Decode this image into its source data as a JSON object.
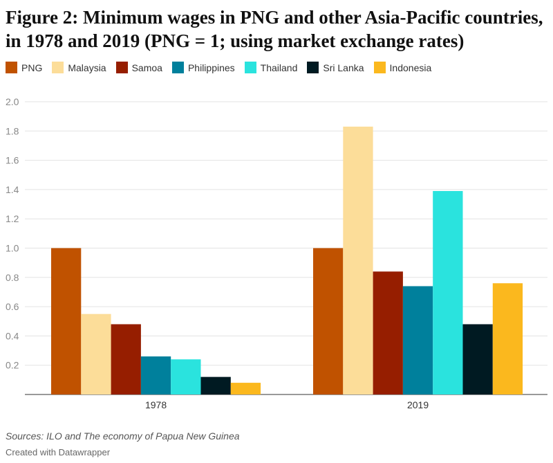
{
  "title": "Figure 2: Minimum wages in PNG and other Asia-Pacific countries, in 1978 and 2019 (PNG = 1; using market exchange rates)",
  "source": "Sources: ILO and The economy of Papua New Guinea",
  "credit": "Created with Datawrapper",
  "chart_data": {
    "type": "bar",
    "title": "Figure 2: Minimum wages in PNG and other Asia-Pacific countries, in 1978 and 2019 (PNG = 1; using market exchange rates)",
    "categories": [
      "1978",
      "2019"
    ],
    "series": [
      {
        "name": "PNG",
        "color": "#c05200",
        "values": [
          1.0,
          1.0
        ]
      },
      {
        "name": "Malaysia",
        "color": "#fcdd99",
        "values": [
          0.55,
          1.83
        ]
      },
      {
        "name": "Samoa",
        "color": "#961e00",
        "values": [
          0.48,
          0.84
        ]
      },
      {
        "name": "Philippines",
        "color": "#00809c",
        "values": [
          0.26,
          0.74
        ]
      },
      {
        "name": "Thailand",
        "color": "#2ae3de",
        "values": [
          0.24,
          1.39
        ]
      },
      {
        "name": "Sri Lanka",
        "color": "#001a22",
        "values": [
          0.12,
          0.48
        ]
      },
      {
        "name": "Indonesia",
        "color": "#fbb81e",
        "values": [
          0.08,
          0.76
        ]
      }
    ],
    "xlabel": "",
    "ylabel": "",
    "ylim": [
      0,
      2.0
    ],
    "yticks": [
      "0.2",
      "0.4",
      "0.6",
      "0.8",
      "1.0",
      "1.2",
      "1.4",
      "1.6",
      "1.8",
      "2.0"
    ],
    "ytick_values": [
      0.2,
      0.4,
      0.6,
      0.8,
      1.0,
      1.2,
      1.4,
      1.6,
      1.8,
      2.0
    ],
    "grid": true,
    "legend": "top-left"
  }
}
